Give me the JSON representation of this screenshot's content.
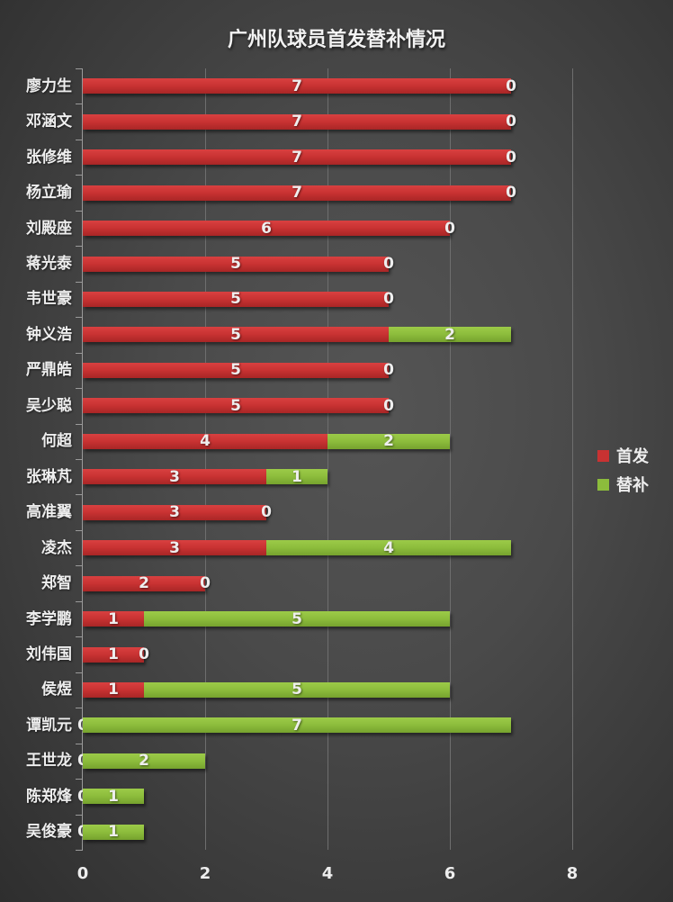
{
  "chart": {
    "title": "广州队球员首发替补情况",
    "legend": [
      {
        "label": "首发",
        "color": "#c83232"
      },
      {
        "label": "替补",
        "color": "#8cbc3c"
      }
    ],
    "x_ticks": [
      "0",
      "2",
      "4",
      "6",
      "8"
    ]
  },
  "chart_data": {
    "type": "bar",
    "orientation": "horizontal",
    "stacked": true,
    "title": "广州队球员首发替补情况",
    "xlabel": "",
    "ylabel": "",
    "xlim": [
      0,
      8
    ],
    "x_ticks": [
      0,
      2,
      4,
      6,
      8
    ],
    "grid": true,
    "legend_position": "right",
    "categories": [
      "廖力生",
      "邓涵文",
      "张修维",
      "杨立瑜",
      "刘殿座",
      "蒋光泰",
      "韦世豪",
      "钟义浩",
      "严鼎皓",
      "吴少聪",
      "何超",
      "张琳芃",
      "高准翼",
      "凌杰",
      "郑智",
      "李学鹏",
      "刘伟国",
      "侯煜",
      "谭凯元",
      "王世龙",
      "陈郑烽",
      "吴俊豪"
    ],
    "series": [
      {
        "name": "首发",
        "color": "#c83232",
        "values": [
          7,
          7,
          7,
          7,
          6,
          5,
          5,
          5,
          5,
          5,
          4,
          3,
          3,
          3,
          2,
          1,
          1,
          1,
          0,
          0,
          0,
          0
        ]
      },
      {
        "name": "替补",
        "color": "#8cbc3c",
        "values": [
          0,
          0,
          0,
          0,
          0,
          0,
          0,
          2,
          0,
          0,
          2,
          1,
          0,
          4,
          0,
          5,
          0,
          5,
          7,
          2,
          1,
          1
        ]
      }
    ]
  }
}
